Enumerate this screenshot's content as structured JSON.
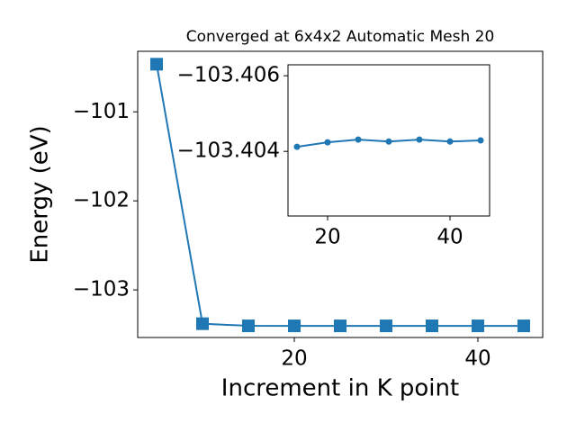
{
  "chart_data": [
    {
      "type": "line",
      "title": "Converged at 6x4x2 Automatic Mesh 20",
      "xlabel": "Increment in K point",
      "ylabel": "Energy (eV)",
      "x": [
        5,
        10,
        15,
        20,
        25,
        30,
        35,
        40,
        45
      ],
      "series": [
        {
          "color": "#1f77b4",
          "marker": "square",
          "values": [
            -100.465,
            -103.38,
            -103.40412,
            -103.40424,
            -103.40431,
            -103.40426,
            -103.40431,
            -103.40426,
            -103.40429
          ]
        }
      ],
      "xlim": [
        2.94,
        47.06
      ],
      "ylim": [
        -103.535,
        -100.32
      ],
      "xticks": [
        20,
        40
      ],
      "yticks": [
        {
          "value": -101,
          "label": "−101"
        },
        {
          "value": -102,
          "label": "−102"
        },
        {
          "value": -103,
          "label": "−103"
        }
      ]
    },
    {
      "type": "line",
      "x": [
        15,
        20,
        25,
        30,
        35,
        40,
        45
      ],
      "series": [
        {
          "color": "#1f77b4",
          "marker": "circle",
          "values": [
            -103.40412,
            -103.40424,
            -103.40431,
            -103.40426,
            -103.40431,
            -103.40426,
            -103.40429
          ]
        }
      ],
      "xlim": [
        13.53,
        46.47
      ],
      "ylim": [
        -103.40229,
        -103.40629
      ],
      "xticks": [
        20,
        40
      ],
      "yticks": [
        {
          "value": -103.406,
          "label": "−103.406"
        },
        {
          "value": -103.404,
          "label": "−103.404"
        }
      ]
    }
  ]
}
